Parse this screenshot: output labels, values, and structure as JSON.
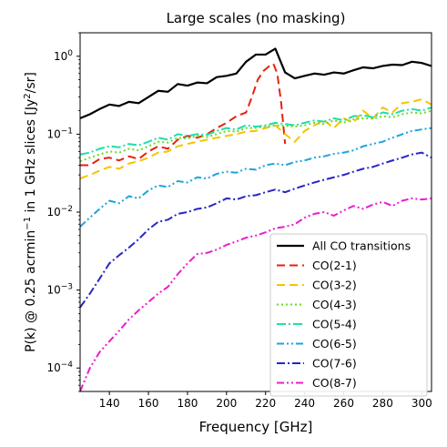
{
  "chart_data": {
    "type": "line",
    "title": "Large scales (no masking)",
    "xlabel": "Frequency [GHz]",
    "ylabel_parts": [
      "P(k) @ 0.25 acrmin",
      "−1",
      " in 1 GHz slices [Jy",
      "2",
      "/sr]"
    ],
    "x_scale": "linear",
    "y_scale": "log",
    "xlim": [
      125,
      305
    ],
    "ylim": [
      5e-05,
      2
    ],
    "x_ticks": [
      140,
      160,
      180,
      200,
      220,
      240,
      260,
      280,
      300
    ],
    "y_ticks": [
      {
        "value": 0.0001,
        "base": "10",
        "exp": "−4"
      },
      {
        "value": 0.001,
        "base": "10",
        "exp": "−3"
      },
      {
        "value": 0.01,
        "base": "10",
        "exp": "−2"
      },
      {
        "value": 0.1,
        "base": "10",
        "exp": "−1"
      },
      {
        "value": 1,
        "base": "10",
        "exp": "0"
      }
    ],
    "legend_position": "lower-right",
    "x": [
      125,
      130,
      135,
      140,
      145,
      150,
      155,
      160,
      165,
      170,
      175,
      180,
      185,
      190,
      195,
      200,
      205,
      210,
      215,
      220,
      225,
      230,
      235,
      240,
      245,
      250,
      255,
      260,
      265,
      270,
      275,
      280,
      285,
      290,
      295,
      300,
      305
    ],
    "series": [
      {
        "name": "All CO transitions",
        "color": "#000000",
        "dash": "",
        "width": 2.2,
        "values": [
          0.16,
          0.18,
          0.21,
          0.24,
          0.23,
          0.26,
          0.25,
          0.3,
          0.36,
          0.35,
          0.44,
          0.42,
          0.46,
          0.45,
          0.54,
          0.56,
          0.6,
          0.85,
          1.05,
          1.05,
          1.25,
          0.62,
          0.52,
          0.56,
          0.6,
          0.58,
          0.62,
          0.6,
          0.66,
          0.72,
          0.7,
          0.75,
          0.78,
          0.77,
          0.85,
          0.82,
          0.75
        ]
      },
      {
        "name": "CO(2-1)",
        "color": "#e8200c",
        "dash": "9,5",
        "width": 2.0,
        "x": [
          125,
          130,
          135,
          140,
          145,
          150,
          155,
          160,
          165,
          170,
          175,
          180,
          185,
          190,
          195,
          200,
          205,
          210,
          213,
          216,
          219,
          222,
          224,
          226,
          228,
          230
        ],
        "values": [
          0.04,
          0.04,
          0.048,
          0.05,
          0.046,
          0.052,
          0.048,
          0.06,
          0.07,
          0.065,
          0.085,
          0.095,
          0.09,
          0.1,
          0.12,
          0.14,
          0.17,
          0.19,
          0.3,
          0.5,
          0.65,
          0.75,
          0.8,
          0.6,
          0.25,
          0.075
        ]
      },
      {
        "name": "CO(3-2)",
        "color": "#f5c400",
        "dash": "9,5",
        "width": 2.0,
        "values": [
          0.027,
          0.03,
          0.034,
          0.038,
          0.036,
          0.042,
          0.045,
          0.05,
          0.058,
          0.06,
          0.07,
          0.075,
          0.08,
          0.085,
          0.09,
          0.095,
          0.1,
          0.108,
          0.11,
          0.12,
          0.13,
          0.1,
          0.08,
          0.11,
          0.13,
          0.15,
          0.12,
          0.16,
          0.14,
          0.2,
          0.16,
          0.22,
          0.19,
          0.25,
          0.26,
          0.28,
          0.24
        ]
      },
      {
        "name": "CO(4-3)",
        "color": "#66dd22",
        "dash": "2,3",
        "width": 2.0,
        "values": [
          0.045,
          0.05,
          0.055,
          0.06,
          0.058,
          0.065,
          0.062,
          0.07,
          0.08,
          0.078,
          0.09,
          0.088,
          0.095,
          0.092,
          0.1,
          0.11,
          0.108,
          0.12,
          0.12,
          0.125,
          0.13,
          0.128,
          0.125,
          0.13,
          0.14,
          0.135,
          0.15,
          0.14,
          0.155,
          0.16,
          0.158,
          0.17,
          0.165,
          0.18,
          0.19,
          0.185,
          0.2
        ]
      },
      {
        "name": "CO(5-4)",
        "color": "#22ddaa",
        "dash": "10,3,2,3",
        "width": 2.0,
        "values": [
          0.055,
          0.058,
          0.065,
          0.07,
          0.068,
          0.075,
          0.072,
          0.08,
          0.09,
          0.085,
          0.1,
          0.095,
          0.1,
          0.098,
          0.11,
          0.12,
          0.115,
          0.13,
          0.125,
          0.13,
          0.14,
          0.135,
          0.13,
          0.14,
          0.15,
          0.145,
          0.16,
          0.15,
          0.17,
          0.175,
          0.165,
          0.19,
          0.18,
          0.2,
          0.21,
          0.2,
          0.22
        ]
      },
      {
        "name": "CO(6-5)",
        "color": "#1ca5dd",
        "dash": "8,3,2,3,2,3",
        "width": 2.0,
        "values": [
          0.0065,
          0.0085,
          0.011,
          0.014,
          0.013,
          0.016,
          0.015,
          0.019,
          0.022,
          0.021,
          0.025,
          0.024,
          0.028,
          0.027,
          0.031,
          0.033,
          0.032,
          0.036,
          0.035,
          0.04,
          0.042,
          0.04,
          0.044,
          0.046,
          0.05,
          0.052,
          0.056,
          0.058,
          0.062,
          0.07,
          0.075,
          0.08,
          0.09,
          0.1,
          0.11,
          0.115,
          0.12
        ]
      },
      {
        "name": "CO(7-6)",
        "color": "#2626c8",
        "dash": "9,3,2,3",
        "width": 2.0,
        "values": [
          0.0006,
          0.0009,
          0.0014,
          0.0022,
          0.0028,
          0.0035,
          0.0045,
          0.006,
          0.0075,
          0.008,
          0.0095,
          0.01,
          0.011,
          0.0115,
          0.013,
          0.015,
          0.0145,
          0.016,
          0.0165,
          0.018,
          0.0195,
          0.018,
          0.02,
          0.022,
          0.024,
          0.026,
          0.028,
          0.03,
          0.033,
          0.036,
          0.038,
          0.042,
          0.046,
          0.05,
          0.055,
          0.058,
          0.05
        ]
      },
      {
        "name": "CO(8-7)",
        "color": "#ee1ccc",
        "dash": "8,3,2,3,2,3",
        "width": 2.0,
        "values": [
          5e-05,
          0.0001,
          0.00016,
          0.00022,
          0.0003,
          0.00042,
          0.00055,
          0.0007,
          0.0009,
          0.0011,
          0.0016,
          0.0022,
          0.0029,
          0.003,
          0.0033,
          0.0038,
          0.0042,
          0.0047,
          0.005,
          0.0055,
          0.0062,
          0.0065,
          0.007,
          0.0085,
          0.0095,
          0.01,
          0.009,
          0.0105,
          0.012,
          0.011,
          0.0125,
          0.0135,
          0.012,
          0.014,
          0.015,
          0.0145,
          0.015
        ]
      }
    ]
  }
}
